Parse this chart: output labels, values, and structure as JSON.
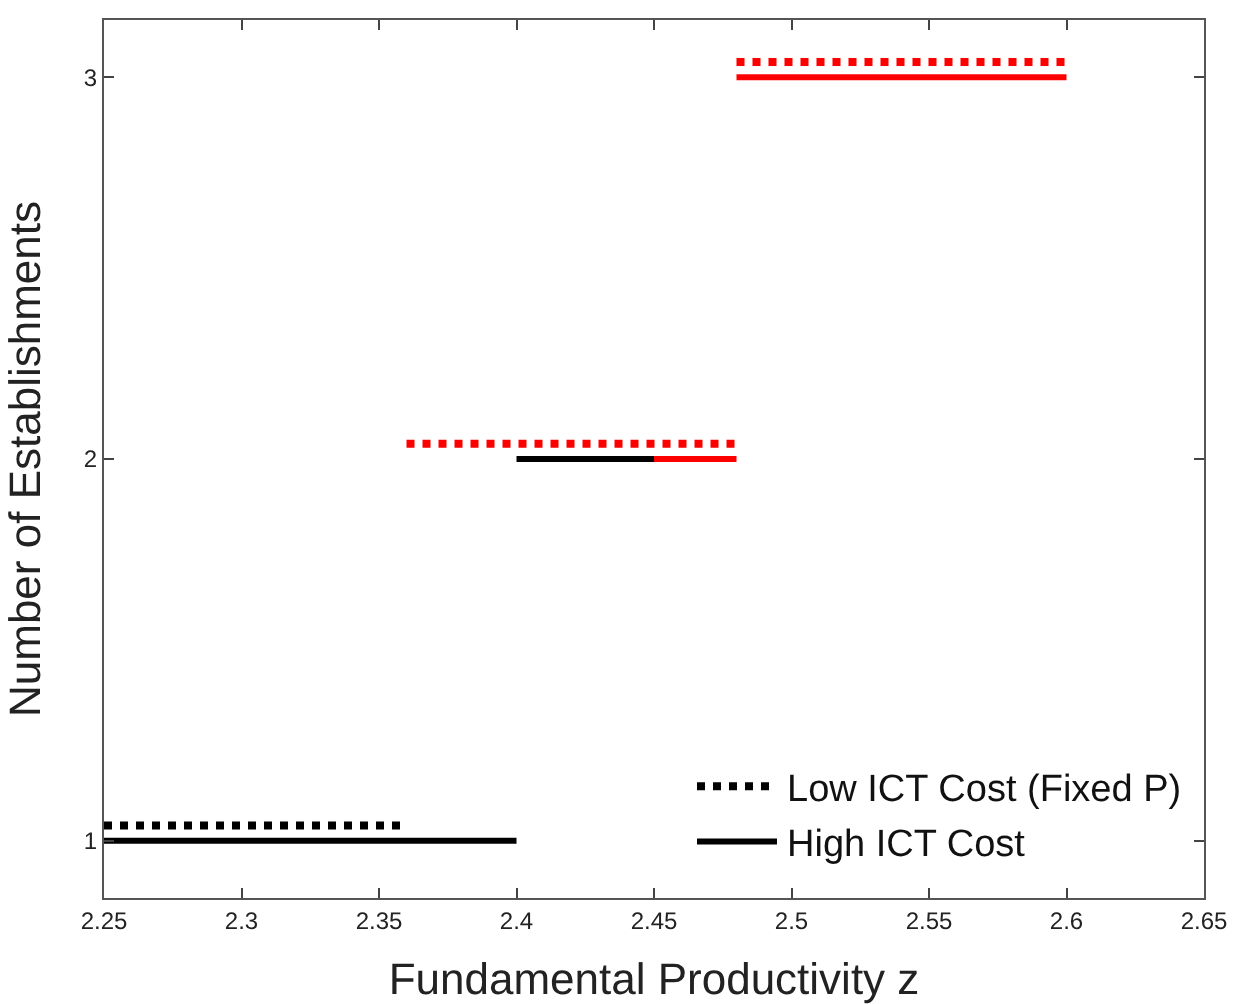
{
  "chart_data": {
    "type": "line",
    "xlabel": "Fundamental Productivity z",
    "ylabel": "Number of Establishments",
    "xlim": [
      2.25,
      2.65
    ],
    "xticks": [
      2.25,
      2.3,
      2.35,
      2.4,
      2.45,
      2.5,
      2.55,
      2.6,
      2.65
    ],
    "ylim": [
      0.85,
      3.15
    ],
    "yticks": [
      1,
      2,
      3
    ],
    "grid": false,
    "legend": "bottom right",
    "marker": "none",
    "series": [
      {
        "name": "Low ICT Cost (Fixed P)",
        "color": "#000000",
        "line_style": "dotted",
        "x": [
          2.25,
          2.36
        ],
        "values": [
          1.04,
          1.04
        ]
      },
      {
        "color": "#ff0000",
        "line_style": "dotted",
        "x": [
          2.36,
          2.48
        ],
        "values": [
          2.04,
          2.04
        ]
      },
      {
        "color": "#ff0000",
        "line_style": "dotted",
        "x": [
          2.48,
          2.6
        ],
        "values": [
          3.04,
          3.04
        ]
      },
      {
        "name": "High ICT Cost",
        "color": "#000000",
        "line_style": "solid",
        "x": [
          2.25,
          2.4
        ],
        "values": [
          1,
          1
        ]
      },
      {
        "color": "#000000",
        "line_style": "solid",
        "x": [
          2.4,
          2.45
        ],
        "values": [
          2,
          2
        ]
      },
      {
        "color": "#ff0000",
        "line_style": "solid",
        "x": [
          2.45,
          2.48
        ],
        "values": [
          2,
          2
        ]
      },
      {
        "color": "#ff0000",
        "line_style": "solid",
        "x": [
          2.48,
          2.6
        ],
        "values": [
          3,
          3
        ]
      }
    ]
  }
}
